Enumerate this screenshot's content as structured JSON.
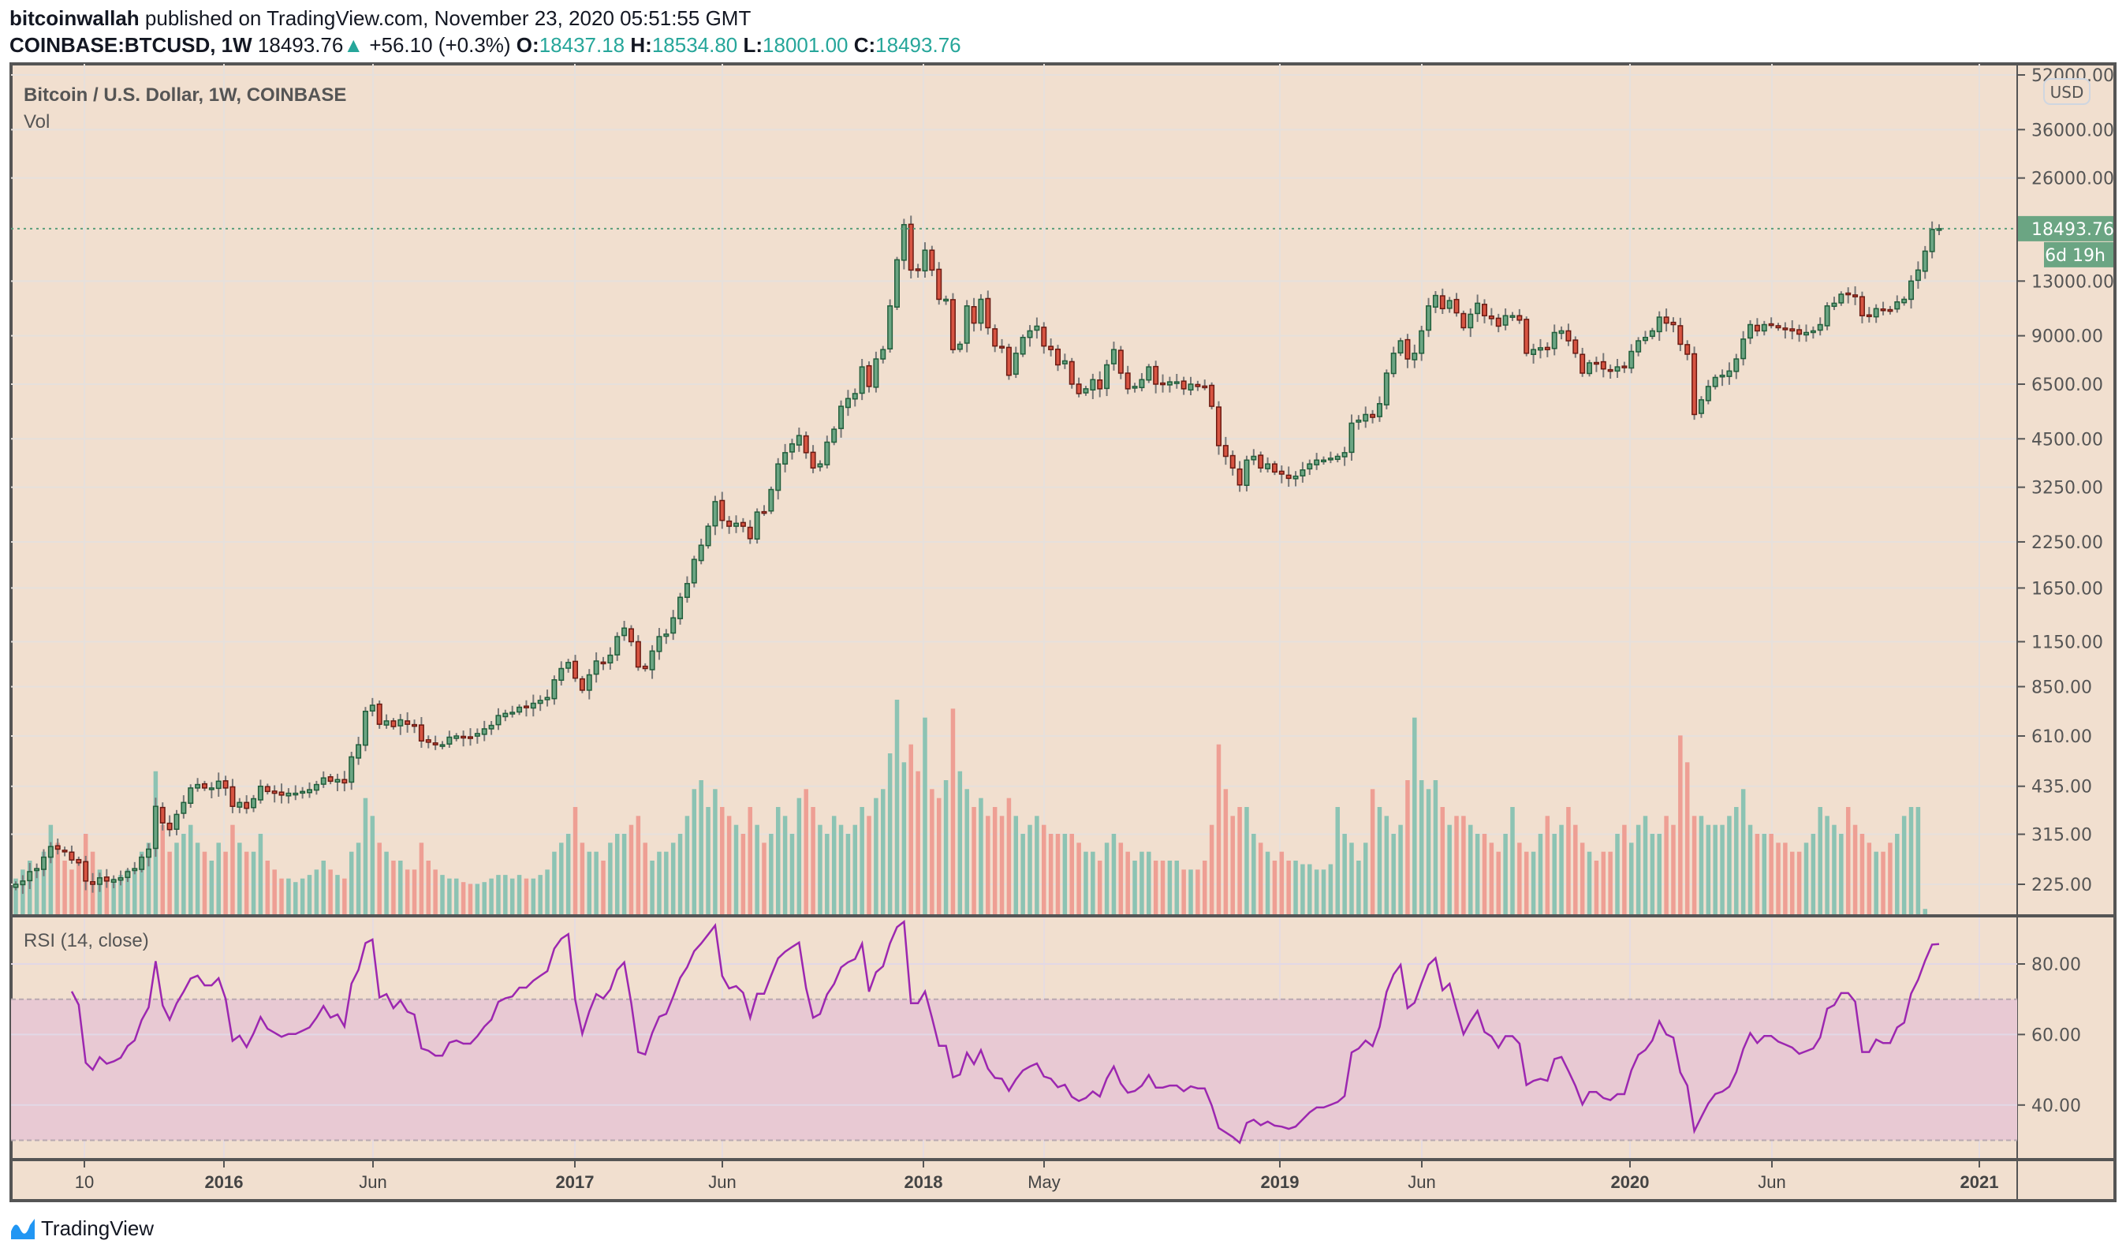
{
  "header": {
    "author": "bitcoinwallah",
    "published": "published on TradingView.com, November 23, 2020 05:51:55 GMT",
    "symbol": "COINBASE:BTCUSD, 1W",
    "last": "18493.76",
    "change": "+56.10 (+0.3%)",
    "o_label": "O:",
    "o": "18437.18",
    "h_label": "H:",
    "h": "18534.80",
    "l_label": "L:",
    "l": "18001.00",
    "c_label": "C:",
    "c": "18493.76"
  },
  "legend": {
    "title": "Bitcoin / U.S. Dollar, 1W, COINBASE",
    "vol": "Vol",
    "rsi": "RSI (14, close)"
  },
  "price_axis": {
    "currency": "USD",
    "last_price_label": "18493.76",
    "countdown": "6d 19h",
    "ticks": [
      "52000.00",
      "36000.00",
      "26000.00",
      "13000.00",
      "9000.00",
      "6500.00",
      "4500.00",
      "3250.00",
      "2250.00",
      "1650.00",
      "1150.00",
      "850.00",
      "610.00",
      "435.00",
      "315.00",
      "225.00"
    ]
  },
  "rsi_axis": {
    "ticks": [
      "80.00",
      "60.00",
      "40.00"
    ],
    "upper_band": 70,
    "lower_band": 30
  },
  "time_axis": {
    "labels": [
      "10",
      "2016",
      "Jun",
      "2017",
      "Jun",
      "2018",
      "May",
      "2019",
      "Jun",
      "2020",
      "Jun",
      "2021"
    ]
  },
  "logo": "TradingView",
  "colors": {
    "up": "#6ba583",
    "up_border": "#215e3b",
    "down": "#d75442",
    "down_border": "#6b1a12",
    "vol_up": "#8cc3b3",
    "vol_down": "#ee9f94",
    "rsi": "#9c27b0",
    "band": "#e8c9d3",
    "bg": "#f1dfcf"
  },
  "chart_data": {
    "type": "candlestick",
    "title": "Bitcoin / U.S. Dollar, 1W, COINBASE",
    "scale": "log",
    "ylim": [
      200,
      52000
    ],
    "closes": [
      225,
      230,
      245,
      250,
      270,
      290,
      285,
      280,
      265,
      260,
      230,
      225,
      235,
      230,
      232,
      235,
      245,
      250,
      270,
      285,
      380,
      340,
      325,
      360,
      390,
      430,
      440,
      430,
      430,
      450,
      430,
      380,
      390,
      375,
      400,
      435,
      420,
      415,
      410,
      415,
      415,
      420,
      425,
      440,
      460,
      450,
      455,
      445,
      530,
      575,
      720,
      750,
      660,
      675,
      650,
      680,
      660,
      655,
      590,
      585,
      575,
      575,
      605,
      610,
      605,
      605,
      620,
      640,
      655,
      700,
      710,
      715,
      740,
      740,
      760,
      775,
      790,
      890,
      960,
      1000,
      900,
      830,
      920,
      1010,
      1000,
      1050,
      1190,
      1260,
      1150,
      970,
      960,
      1080,
      1190,
      1210,
      1350,
      1550,
      1700,
      2000,
      2200,
      2500,
      2950,
      2600,
      2500,
      2550,
      2500,
      2300,
      2750,
      2750,
      3200,
      3800,
      4100,
      4350,
      4600,
      4100,
      3700,
      3800,
      4400,
      4800,
      5600,
      5900,
      6100,
      7300,
      6400,
      7700,
      8200,
      11000,
      15000,
      19000,
      14000,
      14000,
      16000,
      14000,
      11500,
      11500,
      8200,
      8500,
      11000,
      9800,
      11500,
      9500,
      8400,
      8300,
      6900,
      8000,
      8900,
      9300,
      9600,
      8400,
      8200,
      7400,
      7600,
      6500,
      6100,
      6300,
      6700,
      6300,
      7400,
      8200,
      7000,
      6300,
      6400,
      6700,
      7300,
      6500,
      6500,
      6600,
      6600,
      6300,
      6500,
      6400,
      6400,
      5600,
      4300,
      4000,
      3700,
      3300,
      3900,
      4000,
      3700,
      3800,
      3600,
      3550,
      3450,
      3500,
      3650,
      3800,
      3900,
      3900,
      3950,
      4000,
      4100,
      5000,
      5100,
      5300,
      5200,
      5700,
      7000,
      8000,
      8700,
      7700,
      8000,
      9300,
      11000,
      11800,
      10800,
      11400,
      10500,
      9500,
      10400,
      11200,
      10300,
      10100,
      9600,
      10300,
      10300,
      10000,
      8000,
      8200,
      8300,
      8200,
      9200,
      9300,
      8700,
      8000,
      7000,
      7500,
      7500,
      7200,
      7100,
      7300,
      7300,
      8100,
      8700,
      8900,
      9300,
      10200,
      9800,
      9700,
      8500,
      7950,
      5300,
      5850,
      6400,
      6800,
      6900,
      7100,
      7700,
      8800,
      9700,
      9300,
      9700,
      9700,
      9500,
      9400,
      9300,
      9100,
      9200,
      9300,
      9700,
      11000,
      11200,
      11900,
      11900,
      11700,
      10300,
      10300,
      10800,
      10700,
      10700,
      11300,
      11500,
      13000,
      14000,
      15900,
      18400,
      18493.76
    ],
    "volume": [
      20,
      25,
      30,
      25,
      35,
      50,
      40,
      30,
      25,
      30,
      45,
      35,
      25,
      20,
      20,
      22,
      25,
      25,
      35,
      40,
      80,
      50,
      35,
      40,
      45,
      50,
      40,
      35,
      30,
      40,
      35,
      50,
      40,
      35,
      35,
      45,
      30,
      25,
      20,
      20,
      18,
      20,
      22,
      25,
      30,
      25,
      22,
      20,
      35,
      40,
      65,
      55,
      40,
      35,
      30,
      30,
      25,
      25,
      40,
      30,
      25,
      22,
      20,
      20,
      18,
      17,
      17,
      18,
      20,
      22,
      22,
      20,
      22,
      20,
      20,
      22,
      25,
      35,
      40,
      45,
      60,
      40,
      35,
      35,
      30,
      40,
      45,
      45,
      50,
      55,
      40,
      30,
      35,
      35,
      40,
      45,
      55,
      70,
      75,
      60,
      70,
      60,
      55,
      50,
      45,
      60,
      50,
      40,
      45,
      60,
      55,
      45,
      65,
      70,
      60,
      50,
      45,
      55,
      50,
      45,
      50,
      60,
      55,
      65,
      70,
      90,
      120,
      85,
      95,
      80,
      110,
      70,
      65,
      75,
      115,
      80,
      70,
      60,
      65,
      55,
      60,
      55,
      65,
      55,
      45,
      50,
      55,
      50,
      45,
      45,
      45,
      45,
      40,
      35,
      35,
      30,
      40,
      45,
      40,
      35,
      30,
      35,
      35,
      30,
      30,
      30,
      30,
      25,
      25,
      25,
      30,
      50,
      95,
      70,
      55,
      60,
      60,
      45,
      40,
      35,
      30,
      35,
      30,
      30,
      28,
      28,
      25,
      25,
      28,
      60,
      45,
      40,
      30,
      40,
      70,
      60,
      55,
      45,
      50,
      75,
      110,
      75,
      70,
      75,
      60,
      50,
      55,
      55,
      50,
      45,
      45,
      40,
      35,
      45,
      60,
      40,
      35,
      35,
      45,
      55,
      45,
      50,
      60,
      50,
      40,
      35,
      30,
      35,
      35,
      45,
      50,
      40,
      50,
      55,
      45,
      45,
      55,
      50,
      100,
      85,
      55,
      55,
      50,
      50,
      50,
      55,
      60,
      70,
      50,
      45,
      45,
      45,
      40,
      40,
      35,
      35,
      40,
      45,
      60,
      55,
      50,
      45,
      60,
      50,
      45,
      40,
      35,
      35,
      40,
      45,
      55,
      60,
      60,
      3
    ]
  }
}
